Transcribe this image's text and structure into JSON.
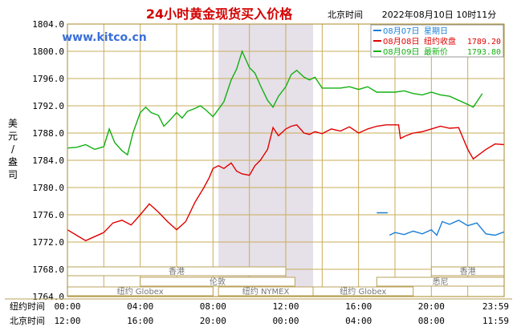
{
  "header": {
    "title": "24小时黄金现货买入价格",
    "timezone_label": "北京时间",
    "datetime": "2022年08月10日 10时11分",
    "watermark": "www.kitco.cn"
  },
  "y_axis_label": "美元/盎司",
  "legend": [
    {
      "date": "08月07日",
      "desc": "星期日",
      "value": "",
      "color": "#1a7fd6"
    },
    {
      "date": "08月08日",
      "desc": "纽约收盘",
      "value": "1789.20",
      "color": "#e00000"
    },
    {
      "date": "08月09日",
      "desc": "最新价",
      "value": "1793.80",
      "color": "#12b012"
    }
  ],
  "sessions": {
    "row1": [
      {
        "label": "香港",
        "start": 0,
        "end": 12
      },
      {
        "label": "香港",
        "start": 20,
        "end": 24
      }
    ],
    "row2": [
      {
        "label": "伦敦",
        "start": 4,
        "end": 12.5
      },
      {
        "label": "悉尼",
        "start": 17,
        "end": 24
      }
    ],
    "row3": [
      {
        "label": "纽约 Globex",
        "start": 0,
        "end": 8
      },
      {
        "label": "纽约 NYMEX",
        "start": 8.3,
        "end": 13.5
      },
      {
        "label": "纽约 Globex",
        "start": 13.5,
        "end": 19
      }
    ]
  },
  "x_rows": {
    "ny_label": "纽约时间",
    "ny_ticks": [
      "00:00",
      "04:00",
      "08:00",
      "12:00",
      "16:00",
      "20:00",
      "23:59"
    ],
    "bj_label": "北京时间",
    "bj_ticks": [
      "12:00",
      "16:00",
      "20:00",
      "00:00",
      "04:00",
      "08:00",
      "11:59"
    ]
  },
  "chart_data": {
    "type": "line",
    "ylim": [
      1764,
      1804
    ],
    "yticks": [
      1764.0,
      1768.0,
      1772.0,
      1776.0,
      1780.0,
      1784.0,
      1788.0,
      1792.0,
      1796.0,
      1800.0,
      1804.0
    ],
    "x_range_hours": [
      0,
      24
    ],
    "nymex_shade_hours": [
      8.3,
      13.5
    ],
    "series": [
      {
        "name": "08月07日",
        "color": "#1a7fd6",
        "points": [
          [
            17,
            1776.3
          ],
          [
            17.6,
            1776.3
          ],
          [
            17.6,
            null
          ],
          [
            17.7,
            1773.0
          ],
          [
            18.0,
            1773.4
          ],
          [
            18.5,
            1773.1
          ],
          [
            19.0,
            1773.6
          ],
          [
            19.5,
            1773.2
          ],
          [
            20.0,
            1773.8
          ],
          [
            20.3,
            1773.0
          ],
          [
            20.6,
            1775.0
          ],
          [
            21.0,
            1774.6
          ],
          [
            21.5,
            1775.2
          ],
          [
            22.0,
            1774.4
          ],
          [
            22.5,
            1774.8
          ],
          [
            23.0,
            1773.2
          ],
          [
            23.5,
            1773.0
          ],
          [
            24.0,
            1773.5
          ]
        ]
      },
      {
        "name": "08月08日",
        "color": "#e00000",
        "points": [
          [
            0,
            1773.8
          ],
          [
            0.5,
            1773.0
          ],
          [
            1.0,
            1772.2
          ],
          [
            1.5,
            1772.8
          ],
          [
            2.0,
            1773.4
          ],
          [
            2.5,
            1774.8
          ],
          [
            3.0,
            1775.2
          ],
          [
            3.5,
            1774.5
          ],
          [
            4.0,
            1776.0
          ],
          [
            4.5,
            1777.6
          ],
          [
            5.0,
            1776.4
          ],
          [
            5.5,
            1775.0
          ],
          [
            6.0,
            1773.8
          ],
          [
            6.5,
            1775.0
          ],
          [
            7.0,
            1777.8
          ],
          [
            7.5,
            1780.0
          ],
          [
            7.8,
            1781.5
          ],
          [
            8.0,
            1782.8
          ],
          [
            8.3,
            1783.2
          ],
          [
            8.6,
            1782.8
          ],
          [
            9.0,
            1783.6
          ],
          [
            9.3,
            1782.4
          ],
          [
            9.6,
            1782.0
          ],
          [
            10.0,
            1781.8
          ],
          [
            10.3,
            1783.2
          ],
          [
            10.6,
            1784.0
          ],
          [
            11.0,
            1785.6
          ],
          [
            11.3,
            1788.8
          ],
          [
            11.6,
            1787.6
          ],
          [
            12.0,
            1788.6
          ],
          [
            12.3,
            1789.0
          ],
          [
            12.6,
            1789.2
          ],
          [
            13.0,
            1788.0
          ],
          [
            13.3,
            1787.8
          ],
          [
            13.6,
            1788.2
          ],
          [
            14.0,
            1787.9
          ],
          [
            14.5,
            1788.6
          ],
          [
            15.0,
            1788.3
          ],
          [
            15.5,
            1788.9
          ],
          [
            16.0,
            1788.0
          ],
          [
            16.5,
            1788.6
          ],
          [
            17.0,
            1789.0
          ],
          [
            17.5,
            1789.2
          ],
          [
            18.0,
            1789.2
          ],
          [
            18.2,
            1789.2
          ],
          [
            18.3,
            1787.2
          ],
          [
            18.6,
            1787.6
          ],
          [
            19.0,
            1788.0
          ],
          [
            19.5,
            1788.2
          ],
          [
            20.0,
            1788.6
          ],
          [
            20.5,
            1789.0
          ],
          [
            21.0,
            1788.7
          ],
          [
            21.5,
            1788.8
          ],
          [
            22.0,
            1785.6
          ],
          [
            22.3,
            1784.2
          ],
          [
            22.6,
            1784.8
          ],
          [
            23.0,
            1785.6
          ],
          [
            23.5,
            1786.4
          ],
          [
            24.0,
            1786.3
          ]
        ]
      },
      {
        "name": "08月09日",
        "color": "#12b012",
        "points": [
          [
            0,
            1785.8
          ],
          [
            0.5,
            1785.9
          ],
          [
            1.0,
            1786.3
          ],
          [
            1.5,
            1785.6
          ],
          [
            2.0,
            1786.0
          ],
          [
            2.3,
            1788.6
          ],
          [
            2.6,
            1786.6
          ],
          [
            3.0,
            1785.4
          ],
          [
            3.3,
            1784.8
          ],
          [
            3.6,
            1788.0
          ],
          [
            4.0,
            1791.0
          ],
          [
            4.3,
            1791.8
          ],
          [
            4.6,
            1791.0
          ],
          [
            5.0,
            1790.6
          ],
          [
            5.3,
            1789.0
          ],
          [
            5.6,
            1789.8
          ],
          [
            6.0,
            1791.0
          ],
          [
            6.3,
            1790.2
          ],
          [
            6.6,
            1791.2
          ],
          [
            7.0,
            1791.6
          ],
          [
            7.3,
            1792.0
          ],
          [
            7.6,
            1791.4
          ],
          [
            8.0,
            1790.4
          ],
          [
            8.3,
            1791.5
          ],
          [
            8.6,
            1792.6
          ],
          [
            9.0,
            1795.8
          ],
          [
            9.3,
            1797.4
          ],
          [
            9.6,
            1800.0
          ],
          [
            10.0,
            1797.6
          ],
          [
            10.3,
            1796.8
          ],
          [
            10.6,
            1795.0
          ],
          [
            11.0,
            1792.8
          ],
          [
            11.3,
            1791.8
          ],
          [
            11.6,
            1793.4
          ],
          [
            12.0,
            1794.8
          ],
          [
            12.3,
            1796.6
          ],
          [
            12.6,
            1797.2
          ],
          [
            13.0,
            1796.2
          ],
          [
            13.3,
            1795.8
          ],
          [
            13.6,
            1796.2
          ],
          [
            14.0,
            1794.6
          ],
          [
            14.5,
            1794.6
          ],
          [
            15.0,
            1794.6
          ],
          [
            15.5,
            1794.8
          ],
          [
            16.0,
            1794.4
          ],
          [
            16.5,
            1794.8
          ],
          [
            17.0,
            1794.0
          ],
          [
            17.5,
            1794.0
          ],
          [
            18.0,
            1794.0
          ],
          [
            18.5,
            1794.2
          ],
          [
            19.0,
            1793.8
          ],
          [
            19.5,
            1793.6
          ],
          [
            20.0,
            1794.0
          ],
          [
            20.5,
            1793.6
          ],
          [
            21.0,
            1793.4
          ],
          [
            21.5,
            1792.8
          ],
          [
            22.0,
            1792.2
          ],
          [
            22.3,
            1791.8
          ],
          [
            22.6,
            1793.0
          ],
          [
            22.8,
            1793.8
          ]
        ]
      }
    ]
  }
}
